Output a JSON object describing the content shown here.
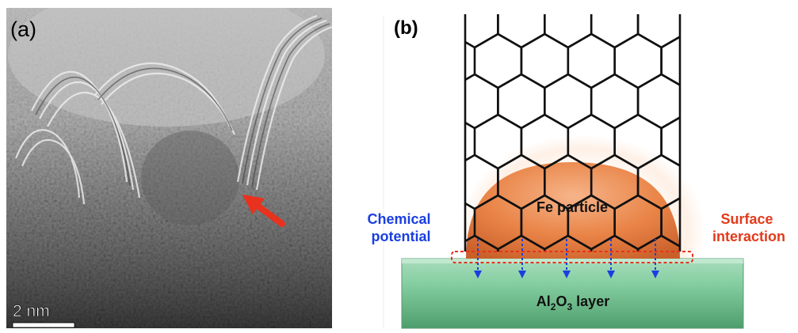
{
  "panel_a": {
    "label": "(a)",
    "scale_bar_label": "2 nm"
  },
  "panel_b": {
    "label": "(b)",
    "particle_label": "Fe particle",
    "substrate_label": {
      "prefix": "Al",
      "sub1": "2",
      "mid": "O",
      "sub2": "3",
      "suffix": " layer"
    },
    "left_annotation": [
      "Chemical",
      "potential"
    ],
    "right_annotation": [
      "Surface",
      "interaction"
    ]
  },
  "colors": {
    "arrow_red": "#e8321e",
    "annotation_blue": "#1a3fe0",
    "annotation_red": "#e23a1a",
    "particle_orange": "#e07a3c",
    "substrate_green": "#7cc59a",
    "dotted_box_red": "#e8321e"
  }
}
